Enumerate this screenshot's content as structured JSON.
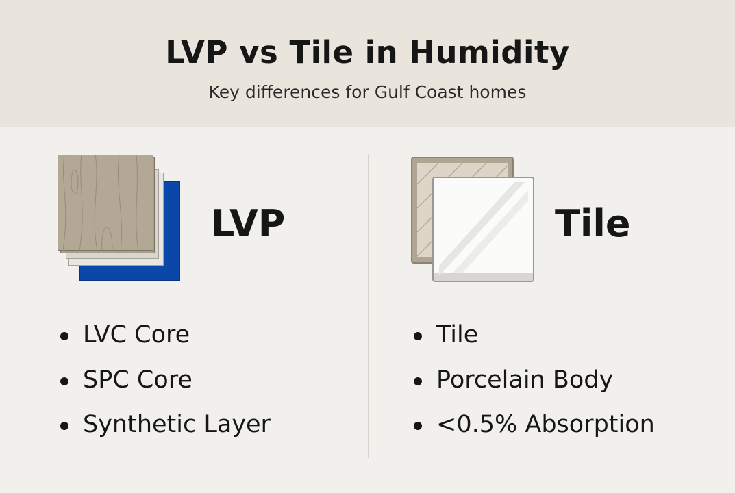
{
  "header": {
    "title": "LVP vs Tile in Humidity",
    "subtitle": "Key differences for Gulf Coast homes"
  },
  "lvp": {
    "icon": "lvp-layers-icon",
    "label": "LVP",
    "bullets": [
      "LVC Core",
      "SPC Core",
      "Synthetic Layer"
    ]
  },
  "tile": {
    "icon": "tile-icon",
    "label": "Tile",
    "bullets": [
      "Tile",
      "Porcelain Body",
      "<0.5% Absorption"
    ]
  },
  "colors": {
    "header_bg": "#e9e5dd",
    "body_bg": "#f1f0ec",
    "lvp_core_blue": "#0b47a8",
    "wood": "#b0a493"
  }
}
